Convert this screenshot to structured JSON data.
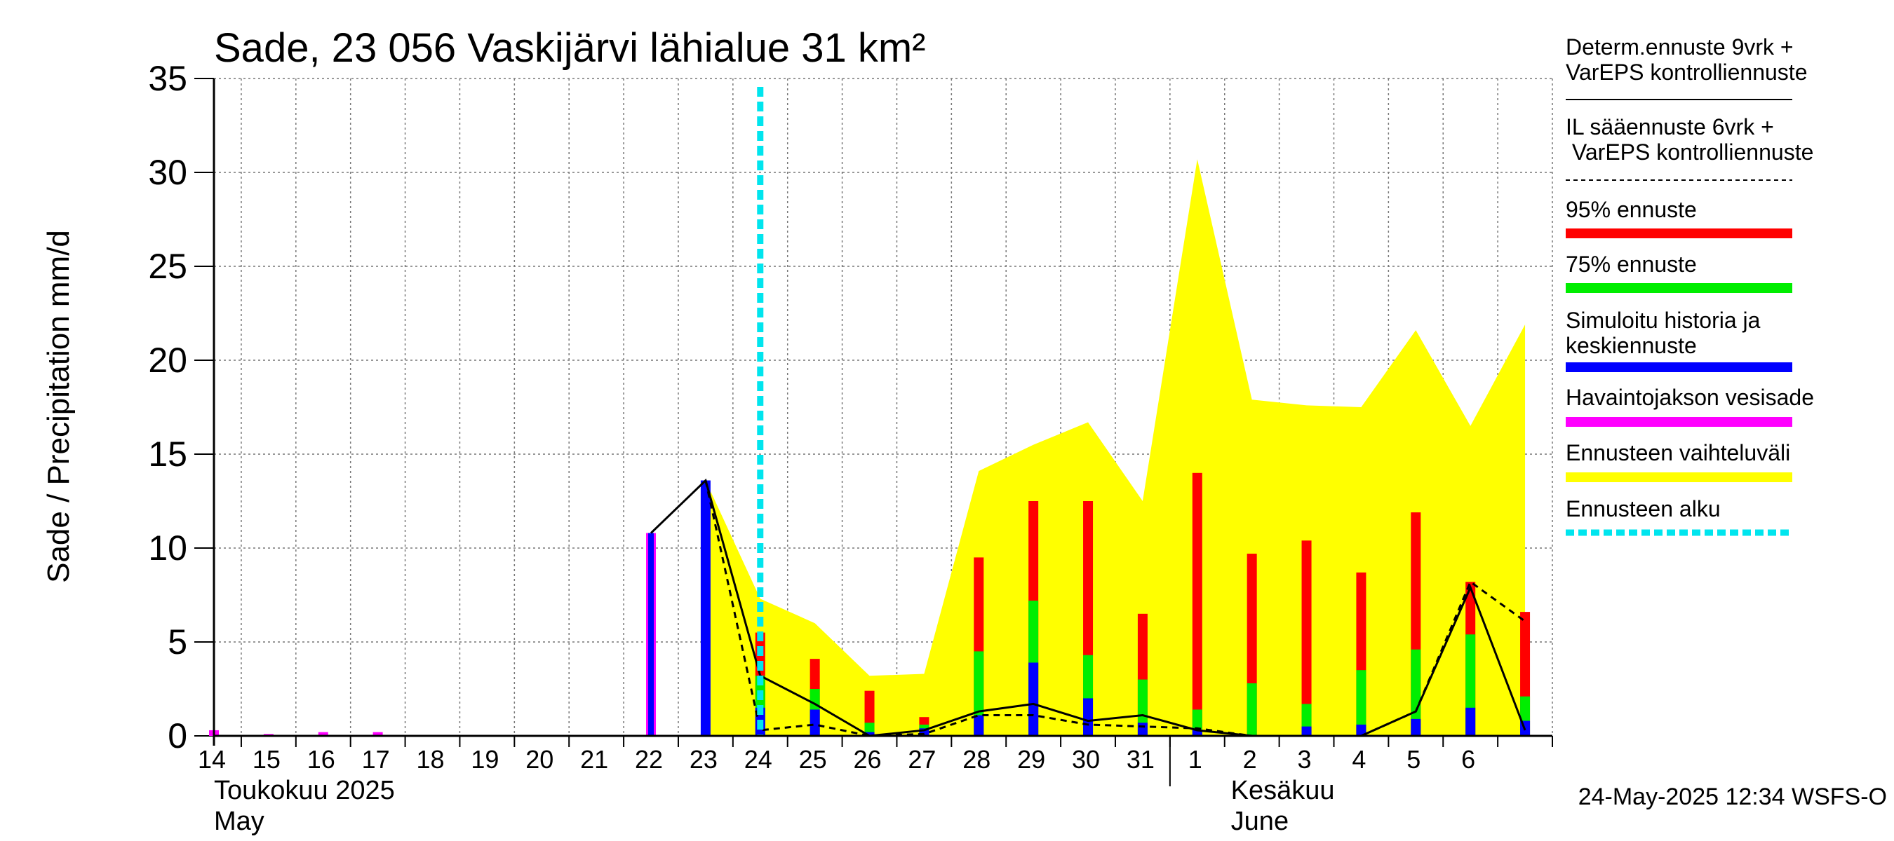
{
  "chart_data": {
    "type": "bar",
    "title": "Sade, 23 056 Vaskijärvi lähialue 31 km²",
    "ylabel": "Sade / Precipitation   mm/d",
    "ylim": [
      0,
      35
    ],
    "yticks": [
      0,
      5,
      10,
      15,
      20,
      25,
      30,
      35
    ],
    "day_labels": [
      "14",
      "15",
      "16",
      "17",
      "18",
      "19",
      "20",
      "21",
      "22",
      "23",
      "24",
      "25",
      "26",
      "27",
      "28",
      "29",
      "30",
      "31",
      "1",
      "2",
      "3",
      "4",
      "5",
      "6"
    ],
    "month_labels": {
      "may_fi": "Toukokuu  2025",
      "may_en": "May",
      "june_fi": "Kesäkuu",
      "june_en": "June"
    },
    "timestamp": "24-May-2025 12:34 WSFS-O",
    "forecast_start_day": 24,
    "observed_precipitation": [
      {
        "day": 14,
        "value": 0.3
      },
      {
        "day": 15,
        "value": 0.1
      },
      {
        "day": 16,
        "value": 0.2
      },
      {
        "day": 17,
        "value": 0.2
      },
      {
        "day": 22,
        "value": 10.8
      }
    ],
    "simulated_history_and_median": [
      {
        "day": 22,
        "value": 10.8
      },
      {
        "day": 23,
        "value": 13.6
      },
      {
        "day": 24,
        "value": 1.5
      },
      {
        "day": 25,
        "value": 1.4
      },
      {
        "day": 26,
        "value": 0.2
      },
      {
        "day": 27,
        "value": 0.4
      },
      {
        "day": 28,
        "value": 1.1
      },
      {
        "day": 29,
        "value": 3.9
      },
      {
        "day": 30,
        "value": 2.0
      },
      {
        "day": 31,
        "value": 0.7
      },
      {
        "day": 32,
        "value": 0.3
      },
      {
        "day": 34,
        "value": 0.5
      },
      {
        "day": 35,
        "value": 0.6
      },
      {
        "day": 36,
        "value": 0.9
      },
      {
        "day": 37,
        "value": 1.5
      },
      {
        "day": 38,
        "value": 0.8
      }
    ],
    "forecast_75": [
      {
        "day": 24,
        "value": 3.2
      },
      {
        "day": 25,
        "value": 2.5
      },
      {
        "day": 26,
        "value": 0.7
      },
      {
        "day": 27,
        "value": 0.6
      },
      {
        "day": 28,
        "value": 4.5
      },
      {
        "day": 29,
        "value": 7.2
      },
      {
        "day": 30,
        "value": 4.3
      },
      {
        "day": 31,
        "value": 3.0
      },
      {
        "day": 32,
        "value": 1.4
      },
      {
        "day": 33,
        "value": 2.8
      },
      {
        "day": 34,
        "value": 1.7
      },
      {
        "day": 35,
        "value": 3.5
      },
      {
        "day": 36,
        "value": 4.6
      },
      {
        "day": 37,
        "value": 5.4
      },
      {
        "day": 38,
        "value": 2.1
      }
    ],
    "forecast_95": [
      {
        "day": 24,
        "value": 5.5
      },
      {
        "day": 25,
        "value": 4.1
      },
      {
        "day": 26,
        "value": 2.4
      },
      {
        "day": 27,
        "value": 1.0
      },
      {
        "day": 28,
        "value": 9.5
      },
      {
        "day": 29,
        "value": 12.5
      },
      {
        "day": 30,
        "value": 12.5
      },
      {
        "day": 31,
        "value": 6.5
      },
      {
        "day": 32,
        "value": 14.0
      },
      {
        "day": 33,
        "value": 9.7
      },
      {
        "day": 34,
        "value": 10.4
      },
      {
        "day": 35,
        "value": 8.7
      },
      {
        "day": 36,
        "value": 11.9
      },
      {
        "day": 37,
        "value": 8.2
      },
      {
        "day": 38,
        "value": 6.6
      }
    ],
    "forecast_range_upper": [
      {
        "day": 23,
        "value": 13.6
      },
      {
        "day": 24,
        "value": 7.3
      },
      {
        "day": 25,
        "value": 6.0
      },
      {
        "day": 26,
        "value": 3.2
      },
      {
        "day": 27,
        "value": 3.3
      },
      {
        "day": 28,
        "value": 14.1
      },
      {
        "day": 29,
        "value": 15.5
      },
      {
        "day": 30,
        "value": 16.7
      },
      {
        "day": 31,
        "value": 12.5
      },
      {
        "day": 32,
        "value": 30.7
      },
      {
        "day": 33,
        "value": 17.9
      },
      {
        "day": 34,
        "value": 17.6
      },
      {
        "day": 35,
        "value": 17.5
      },
      {
        "day": 36,
        "value": 21.6
      },
      {
        "day": 37,
        "value": 16.5
      },
      {
        "day": 38,
        "value": 21.9
      }
    ],
    "deterministic_line": [
      {
        "day": 22,
        "value": 10.8
      },
      {
        "day": 23,
        "value": 13.6
      },
      {
        "day": 24,
        "value": 3.2
      },
      {
        "day": 25,
        "value": 1.7
      },
      {
        "day": 26,
        "value": 0.0
      },
      {
        "day": 27,
        "value": 0.3
      },
      {
        "day": 28,
        "value": 1.3
      },
      {
        "day": 29,
        "value": 1.7
      },
      {
        "day": 30,
        "value": 0.8
      },
      {
        "day": 31,
        "value": 1.1
      },
      {
        "day": 32,
        "value": 0.3
      },
      {
        "day": 33,
        "value": 0.0
      },
      {
        "day": 34,
        "value": 0.0
      },
      {
        "day": 35,
        "value": 0.0
      },
      {
        "day": 36,
        "value": 1.3
      },
      {
        "day": 37,
        "value": 7.9
      },
      {
        "day": 38,
        "value": 0.3
      }
    ],
    "il_dashed_line": [
      {
        "day": 23,
        "value": 13.6
      },
      {
        "day": 24,
        "value": 0.3
      },
      {
        "day": 25,
        "value": 0.6
      },
      {
        "day": 26,
        "value": 0.0
      },
      {
        "day": 27,
        "value": 0.1
      },
      {
        "day": 28,
        "value": 1.1
      },
      {
        "day": 29,
        "value": 1.1
      },
      {
        "day": 30,
        "value": 0.6
      },
      {
        "day": 31,
        "value": 0.5
      },
      {
        "day": 32,
        "value": 0.4
      },
      {
        "day": 33,
        "value": 0.0
      },
      {
        "day": 34,
        "value": 0.0
      },
      {
        "day": 35,
        "value": 0.0
      },
      {
        "day": 36,
        "value": 1.3
      },
      {
        "day": 37,
        "value": 8.2
      },
      {
        "day": 38,
        "value": 6.1
      }
    ],
    "legend": [
      {
        "key": "determ",
        "label": "Determ.ennuste 9vrk +\nVarEPS kontrolliennuste",
        "color": "#000000",
        "style": "solid"
      },
      {
        "key": "il",
        "label": "IL sääennuste 6vrk  +\n  VarEPS kontrolliennuste",
        "color": "#000000",
        "style": "dashed"
      },
      {
        "key": "p95",
        "label": "95% ennuste",
        "color": "#ff0000",
        "style": "thick"
      },
      {
        "key": "p75",
        "label": "75% ennuste",
        "color": "#00ee00",
        "style": "thick"
      },
      {
        "key": "sim",
        "label": "Simuloitu historia ja\nkeskiennuste",
        "color": "#0000ff",
        "style": "thick"
      },
      {
        "key": "obs",
        "label": "Havaintojakson vesisade",
        "color": "#ff00ff",
        "style": "thick"
      },
      {
        "key": "range",
        "label": "Ennusteen vaihteluväli",
        "color": "#ffff00",
        "style": "thick"
      },
      {
        "key": "start",
        "label": "Ennusteen alku",
        "color": "#00e5ee",
        "style": "dotted"
      }
    ]
  }
}
